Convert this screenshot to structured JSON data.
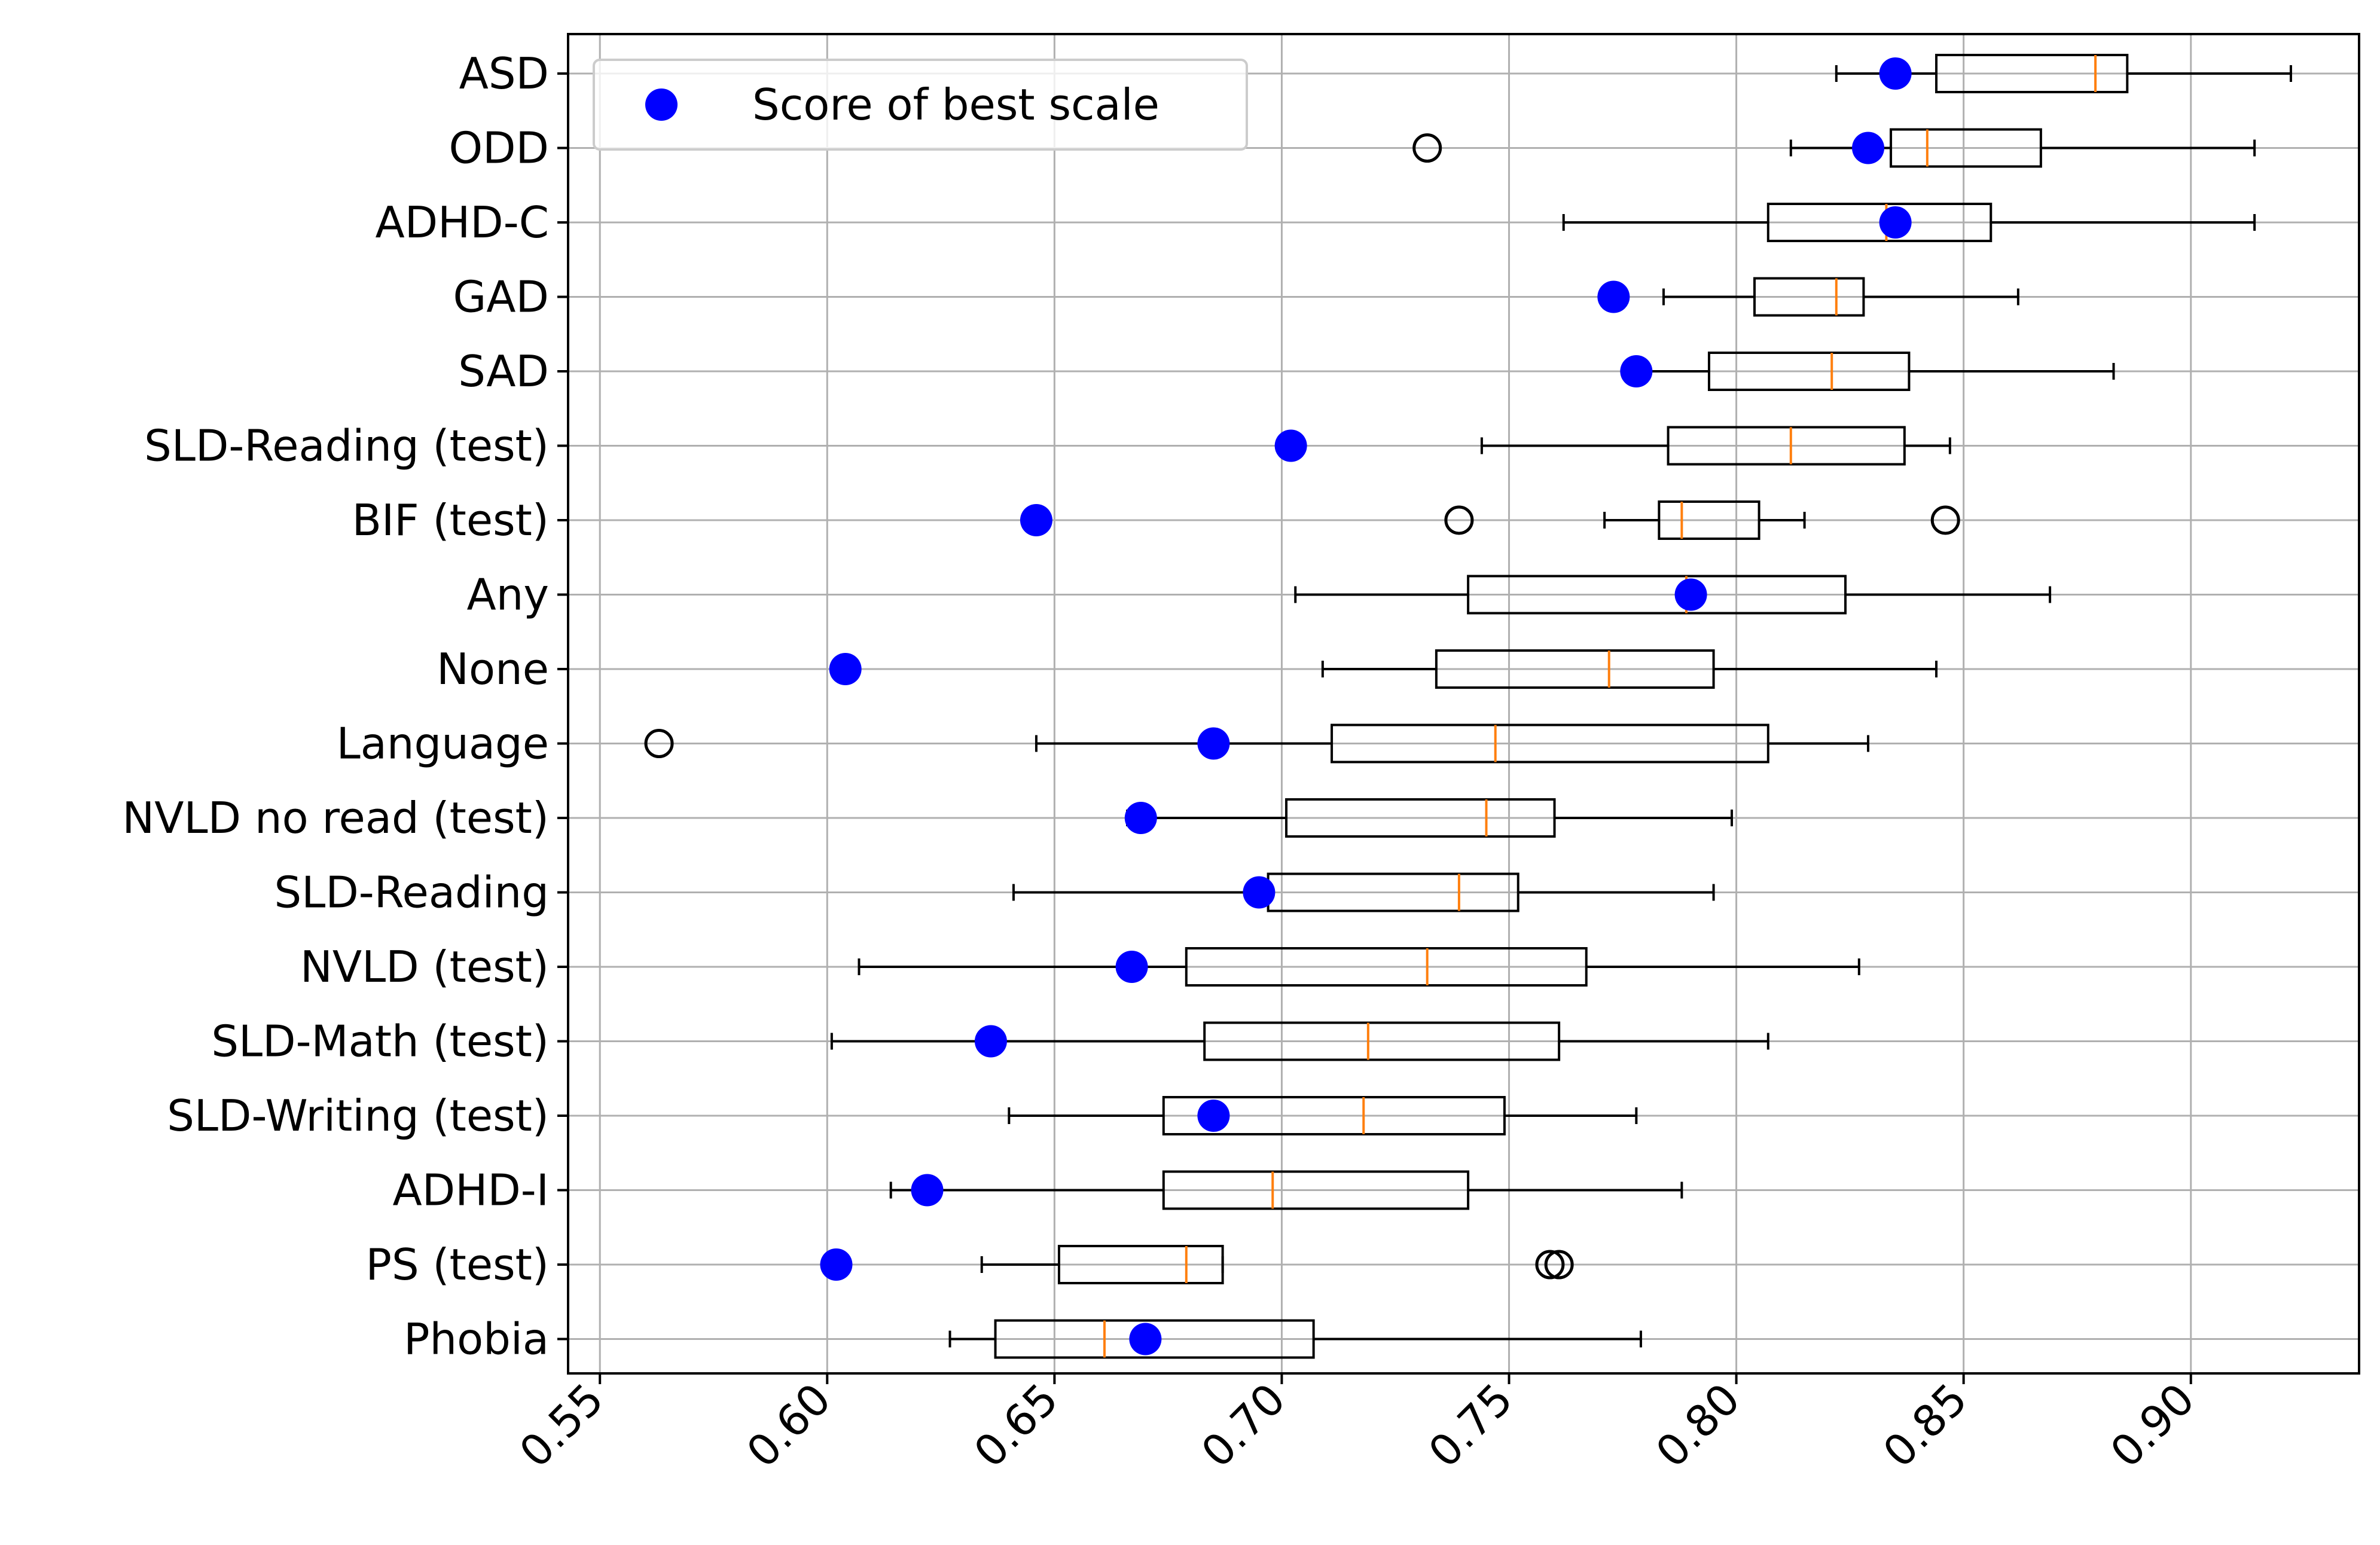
{
  "chart_data": {
    "type": "box",
    "orientation": "horizontal",
    "title": "",
    "xlabel": "",
    "ylabel": "",
    "xlim": [
      0.543,
      0.937
    ],
    "xticks": [
      0.55,
      0.6,
      0.65,
      0.7,
      0.75,
      0.8,
      0.85,
      0.9
    ],
    "xtick_labels": [
      "0.55",
      "0.60",
      "0.65",
      "0.70",
      "0.75",
      "0.80",
      "0.85",
      "0.90"
    ],
    "grid": true,
    "legend": {
      "placement": "top-left",
      "label": "Score of best scale",
      "marker_color": "#0000ff"
    },
    "colors": {
      "box": "#000000",
      "median": "#ff7f0e",
      "score": "#0000ff",
      "grid": "#b0b0b0"
    },
    "categories": [
      "ASD",
      "ODD",
      "ADHD-C",
      "GAD",
      "SAD",
      "SLD-Reading (test)",
      "BIF (test)",
      "Any",
      "None",
      "Language",
      "NVLD no read (test)",
      "SLD-Reading",
      "NVLD (test)",
      "SLD-Math (test)",
      "SLD-Writing (test)",
      "ADHD-I",
      "PS (test)",
      "Phobia"
    ],
    "boxes": [
      {
        "label": "ASD",
        "whisker_low": 0.822,
        "q1": 0.844,
        "median": 0.879,
        "q3": 0.886,
        "whisker_high": 0.922,
        "outliers": [],
        "best_scale": 0.835
      },
      {
        "label": "ODD",
        "whisker_low": 0.812,
        "q1": 0.834,
        "median": 0.842,
        "q3": 0.867,
        "whisker_high": 0.914,
        "outliers": [
          0.732
        ],
        "best_scale": 0.829
      },
      {
        "label": "ADHD-C",
        "whisker_low": 0.762,
        "q1": 0.807,
        "median": 0.833,
        "q3": 0.856,
        "whisker_high": 0.914,
        "outliers": [],
        "best_scale": 0.835
      },
      {
        "label": "GAD",
        "whisker_low": 0.784,
        "q1": 0.804,
        "median": 0.822,
        "q3": 0.828,
        "whisker_high": 0.862,
        "outliers": [],
        "best_scale": 0.773
      },
      {
        "label": "SAD",
        "whisker_low": 0.78,
        "q1": 0.794,
        "median": 0.821,
        "q3": 0.838,
        "whisker_high": 0.883,
        "outliers": [],
        "best_scale": 0.778
      },
      {
        "label": "SLD-Reading (test)",
        "whisker_low": 0.744,
        "q1": 0.785,
        "median": 0.812,
        "q3": 0.837,
        "whisker_high": 0.847,
        "outliers": [],
        "best_scale": 0.702
      },
      {
        "label": "BIF (test)",
        "whisker_low": 0.771,
        "q1": 0.783,
        "median": 0.788,
        "q3": 0.805,
        "whisker_high": 0.815,
        "outliers": [
          0.739,
          0.846
        ],
        "best_scale": 0.646
      },
      {
        "label": "Any",
        "whisker_low": 0.703,
        "q1": 0.741,
        "median": 0.789,
        "q3": 0.824,
        "whisker_high": 0.869,
        "outliers": [],
        "best_scale": 0.79
      },
      {
        "label": "None",
        "whisker_low": 0.709,
        "q1": 0.734,
        "median": 0.772,
        "q3": 0.795,
        "whisker_high": 0.844,
        "outliers": [],
        "best_scale": 0.604
      },
      {
        "label": "Language",
        "whisker_low": 0.646,
        "q1": 0.711,
        "median": 0.747,
        "q3": 0.807,
        "whisker_high": 0.829,
        "outliers": [
          0.563
        ],
        "best_scale": 0.685
      },
      {
        "label": "NVLD no read (test)",
        "whisker_low": 0.666,
        "q1": 0.701,
        "median": 0.745,
        "q3": 0.76,
        "whisker_high": 0.799,
        "outliers": [],
        "best_scale": 0.669
      },
      {
        "label": "SLD-Reading",
        "whisker_low": 0.641,
        "q1": 0.697,
        "median": 0.739,
        "q3": 0.752,
        "whisker_high": 0.795,
        "outliers": [],
        "best_scale": 0.695
      },
      {
        "label": "NVLD (test)",
        "whisker_low": 0.607,
        "q1": 0.679,
        "median": 0.732,
        "q3": 0.767,
        "whisker_high": 0.827,
        "outliers": [],
        "best_scale": 0.667
      },
      {
        "label": "SLD-Math (test)",
        "whisker_low": 0.601,
        "q1": 0.683,
        "median": 0.719,
        "q3": 0.761,
        "whisker_high": 0.807,
        "outliers": [],
        "best_scale": 0.636
      },
      {
        "label": "SLD-Writing (test)",
        "whisker_low": 0.64,
        "q1": 0.674,
        "median": 0.718,
        "q3": 0.749,
        "whisker_high": 0.778,
        "outliers": [],
        "best_scale": 0.685
      },
      {
        "label": "ADHD-I",
        "whisker_low": 0.614,
        "q1": 0.674,
        "median": 0.698,
        "q3": 0.741,
        "whisker_high": 0.788,
        "outliers": [],
        "best_scale": 0.622
      },
      {
        "label": "PS (test)",
        "whisker_low": 0.634,
        "q1": 0.651,
        "median": 0.679,
        "q3": 0.687,
        "whisker_high": 0.687,
        "outliers": [
          0.759,
          0.761
        ],
        "best_scale": 0.602
      },
      {
        "label": "Phobia",
        "whisker_low": 0.627,
        "q1": 0.637,
        "median": 0.661,
        "q3": 0.707,
        "whisker_high": 0.779,
        "outliers": [],
        "best_scale": 0.67
      }
    ]
  }
}
